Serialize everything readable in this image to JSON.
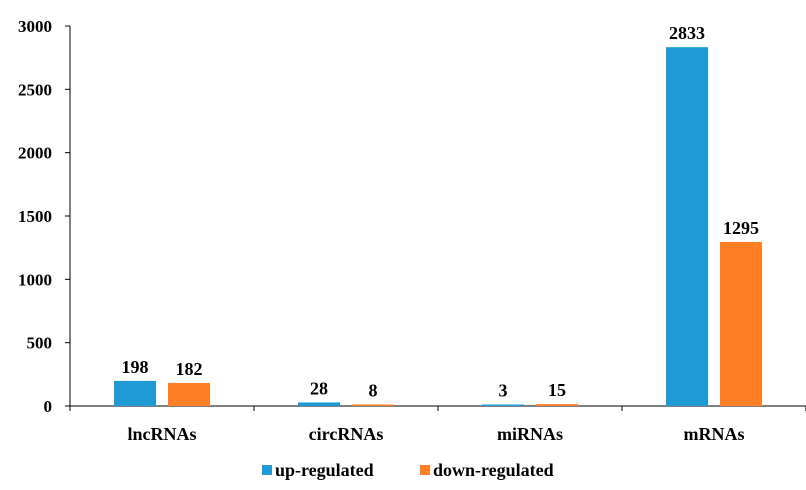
{
  "chart_data": {
    "type": "bar",
    "categories": [
      "lncRNAs",
      "circRNAs",
      "miRNAs",
      "mRNAs"
    ],
    "series": [
      {
        "name": "up-regulated",
        "values": [
          198,
          28,
          3,
          2833
        ],
        "color": "#1f9ad6"
      },
      {
        "name": "down-regulated",
        "values": [
          182,
          8,
          15,
          1295
        ],
        "color": "#ff7f27"
      }
    ],
    "yticks": [
      0,
      500,
      1000,
      1500,
      2000,
      2500,
      3000
    ],
    "ylim": [
      0,
      3000
    ],
    "grid": false,
    "legend_position": "bottom",
    "data_labels": true
  }
}
